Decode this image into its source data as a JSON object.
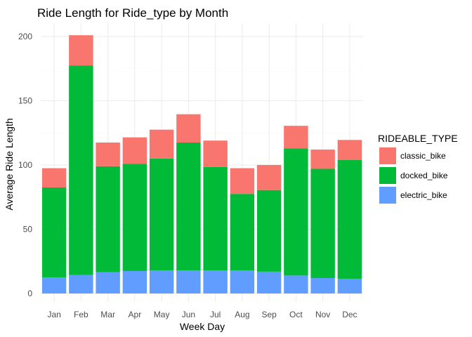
{
  "chart_data": {
    "type": "bar",
    "stacked": true,
    "title": "Ride Length for Ride_type by Month",
    "xlabel": "Week Day",
    "ylabel": "Average Ride Length",
    "categories": [
      "Jan",
      "Feb",
      "Mar",
      "Apr",
      "May",
      "Jun",
      "Jul",
      "Aug",
      "Sep",
      "Oct",
      "Nov",
      "Dec"
    ],
    "series": [
      {
        "name": "electric_bike",
        "color": "#619CFF",
        "values": [
          12.5,
          14.5,
          16.5,
          17.5,
          18,
          18,
          18,
          18,
          17,
          14,
          12,
          11.5
        ]
      },
      {
        "name": "docked_bike",
        "color": "#00BA38",
        "values": [
          70,
          163,
          82.5,
          83.5,
          87,
          99.5,
          80.5,
          59.5,
          63.5,
          99,
          85,
          92.5
        ]
      },
      {
        "name": "classic_bike",
        "color": "#F8766D",
        "values": [
          15,
          23.5,
          18.5,
          20.5,
          22.5,
          22,
          20.5,
          20,
          19.5,
          17.5,
          15,
          15.5
        ]
      }
    ],
    "ylim": [
      0,
      210
    ],
    "yticks": [
      0,
      50,
      100,
      150,
      200
    ],
    "grid": true,
    "legend": {
      "title": "RIDEABLE_TYPE",
      "placement": "right",
      "items": [
        {
          "name": "classic_bike",
          "color": "#F8766D"
        },
        {
          "name": "docked_bike",
          "color": "#00BA38"
        },
        {
          "name": "electric_bike",
          "color": "#619CFF"
        }
      ]
    }
  }
}
